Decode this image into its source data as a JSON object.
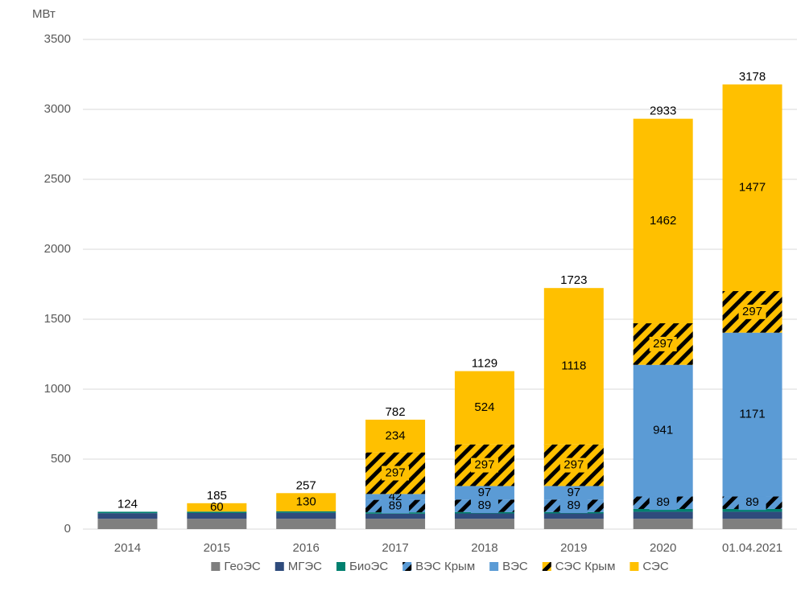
{
  "chart_data": {
    "type": "stacked_bar",
    "y_unit": "МВт",
    "categories": [
      "2014",
      "2015",
      "2016",
      "2017",
      "2018",
      "2019",
      "2020",
      "01.04.2021"
    ],
    "series": [
      {
        "name": "ГеоЭС",
        "color": "#7f7f7f",
        "hatch": false,
        "show_labels": false,
        "values": [
          74,
          74,
          74,
          74,
          74,
          74,
          74,
          74
        ]
      },
      {
        "name": "МГЭС",
        "color": "#2f4b7c",
        "hatch": false,
        "show_labels": false,
        "values": [
          40,
          41,
          43,
          36,
          38,
          38,
          50,
          50
        ]
      },
      {
        "name": "БиоЭС",
        "color": "#00806f",
        "hatch": false,
        "show_labels": false,
        "values": [
          10,
          10,
          10,
          10,
          10,
          10,
          20,
          20
        ]
      },
      {
        "name": "ВЭС Крым",
        "color": "#5b9bd5",
        "hatch": true,
        "show_labels": true,
        "values": [
          null,
          null,
          null,
          89,
          89,
          89,
          89,
          89
        ]
      },
      {
        "name": "ВЭС",
        "color": "#5b9bd5",
        "hatch": false,
        "show_labels": true,
        "values": [
          null,
          null,
          null,
          42,
          97,
          97,
          941,
          1171
        ]
      },
      {
        "name": "СЭС Крым",
        "color": "#ffc000",
        "hatch": true,
        "show_labels": true,
        "values": [
          null,
          null,
          null,
          297,
          297,
          297,
          297,
          297
        ]
      },
      {
        "name": "СЭС",
        "color": "#ffc000",
        "hatch": false,
        "show_labels": true,
        "values": [
          null,
          60,
          130,
          234,
          524,
          1118,
          1462,
          1477
        ]
      }
    ],
    "totals": [
      124,
      185,
      257,
      782,
      1129,
      1723,
      2933,
      3178
    ],
    "ylim": [
      0,
      3500
    ],
    "yticks": [
      0,
      500,
      1000,
      1500,
      2000,
      2500,
      3000,
      3500
    ],
    "grid": true
  }
}
